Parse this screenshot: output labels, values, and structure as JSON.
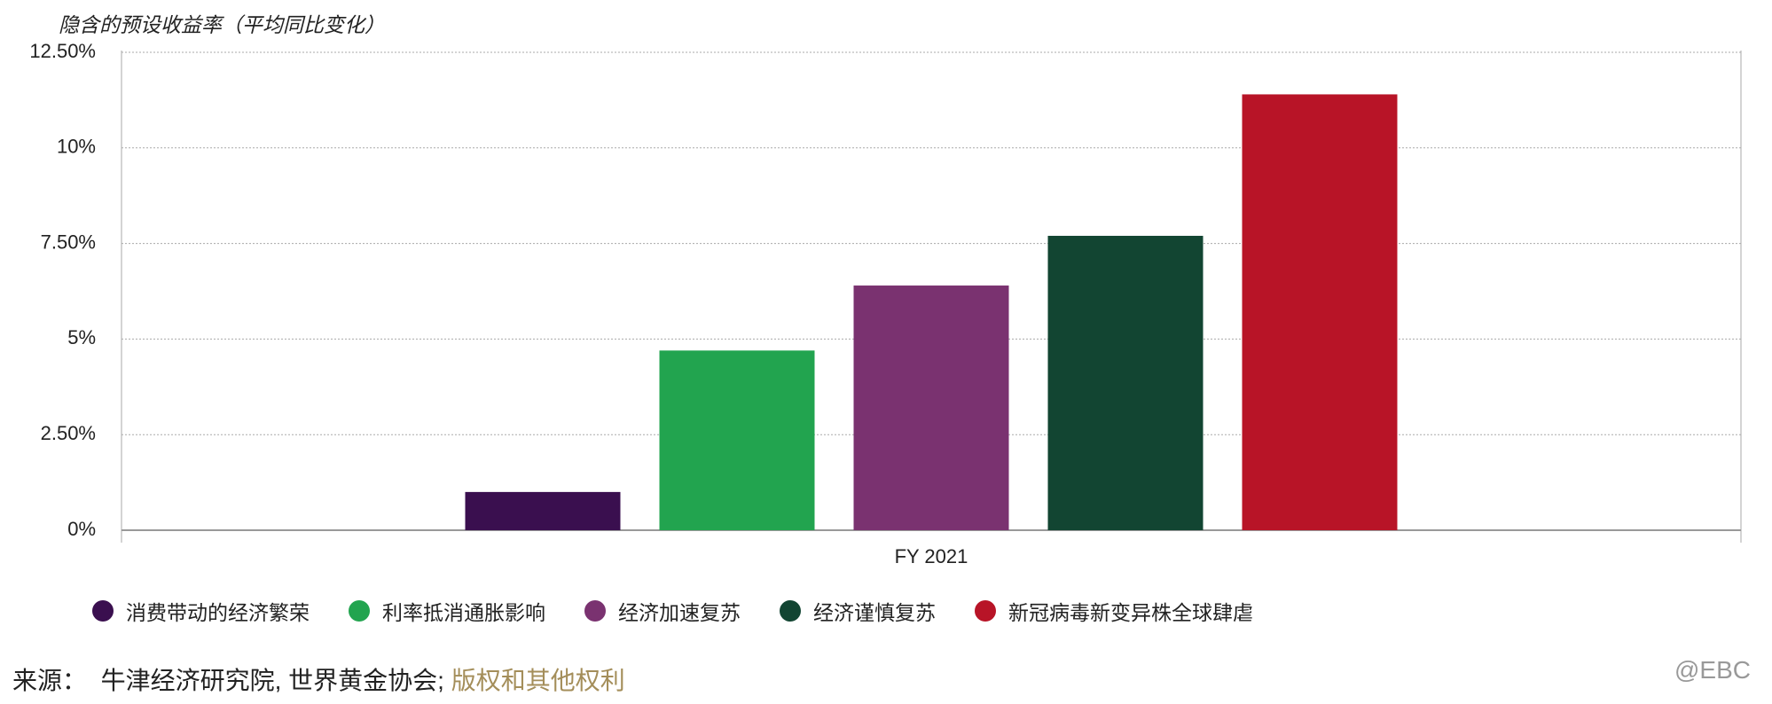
{
  "chart_data": {
    "type": "bar",
    "y_axis_title": "隐含的预设收益率（平均同比变化）",
    "categories": [
      "FY 2021"
    ],
    "series": [
      {
        "name": "消费带动的经济繁荣",
        "color": "#3a0f4f",
        "values": [
          1.0
        ]
      },
      {
        "name": "利率抵消通胀影响",
        "color": "#22a44f",
        "values": [
          4.7
        ]
      },
      {
        "name": "经济加速复苏",
        "color": "#7a3270",
        "values": [
          6.4
        ]
      },
      {
        "name": "经济谨慎复苏",
        "color": "#124532",
        "values": [
          7.7
        ]
      },
      {
        "name": "新冠病毒新变异株全球肆虐",
        "color": "#b81427",
        "values": [
          11.4
        ]
      }
    ],
    "ylim": [
      0,
      12.5
    ],
    "yticks": [
      {
        "value": 0,
        "label": "0%"
      },
      {
        "value": 2.5,
        "label": "2.50%"
      },
      {
        "value": 5,
        "label": "5%"
      },
      {
        "value": 7.5,
        "label": "7.50%"
      },
      {
        "value": 10,
        "label": "10%"
      },
      {
        "value": 12.5,
        "label": "12.50%"
      }
    ],
    "grid": true,
    "legend": "bottom"
  },
  "footer": {
    "source_label": "来源：",
    "source_text": "牛津经济研究院, 世界黄金协会;",
    "source_link": "版权和其他权利"
  },
  "watermark": "@EBC"
}
